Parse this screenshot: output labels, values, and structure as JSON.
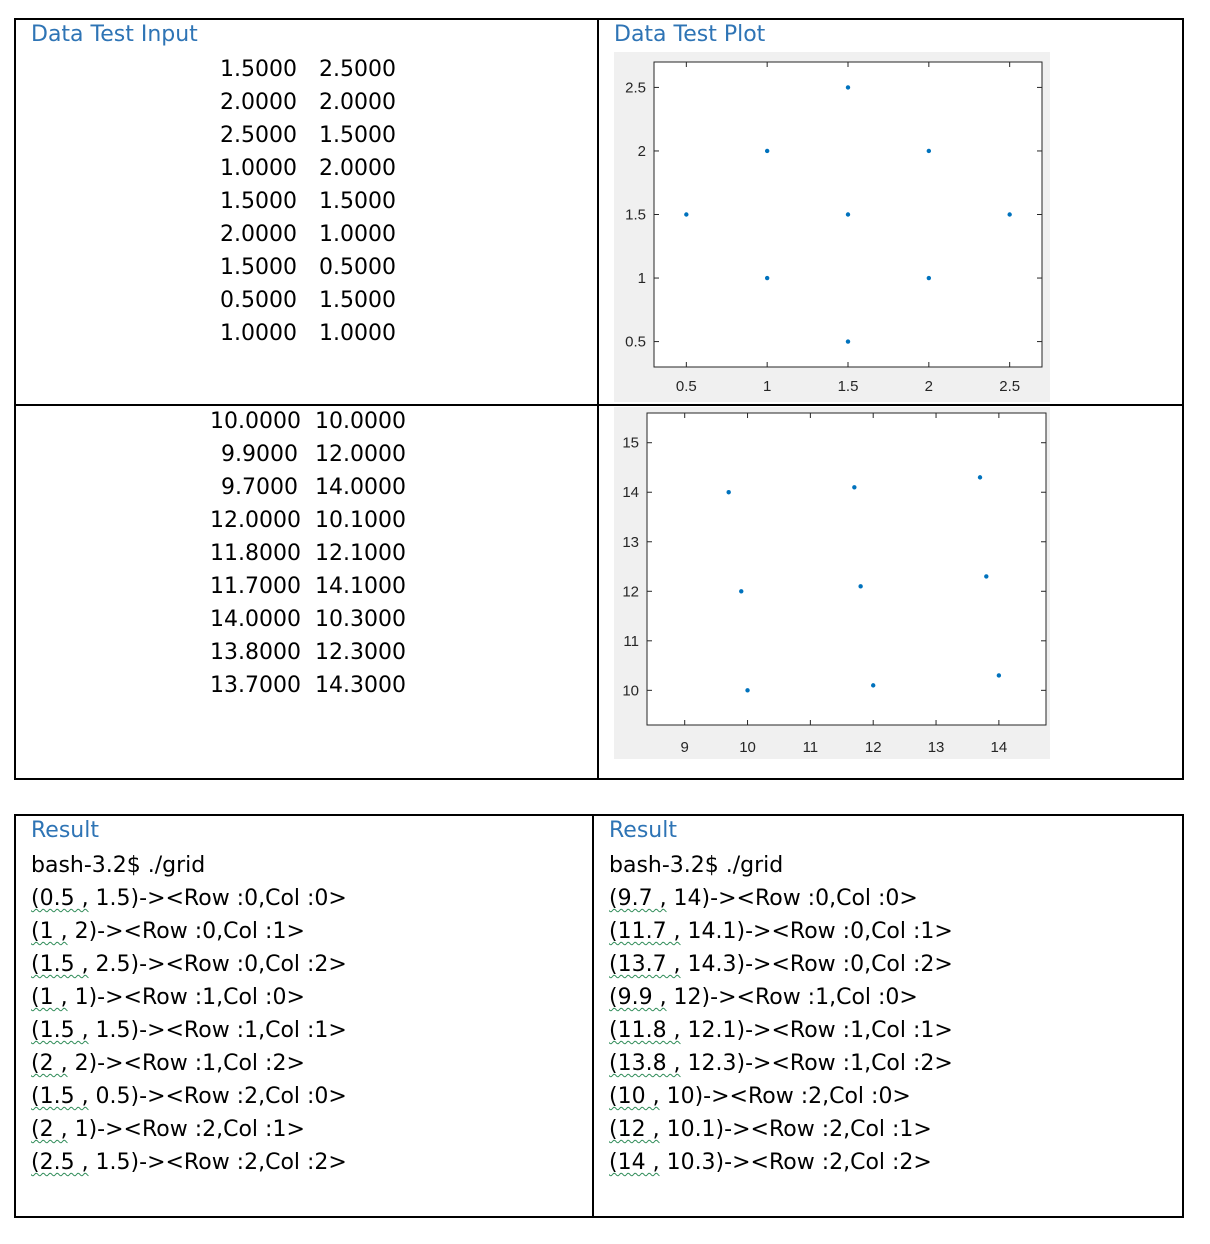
{
  "top": {
    "headings": {
      "input": "Data Test Input",
      "plot": "Data Test Plot"
    },
    "dataset1": [
      [
        "1.5000",
        "2.5000"
      ],
      [
        "2.0000",
        "2.0000"
      ],
      [
        "2.5000",
        "1.5000"
      ],
      [
        "1.0000",
        "2.0000"
      ],
      [
        "1.5000",
        "1.5000"
      ],
      [
        "2.0000",
        "1.0000"
      ],
      [
        "1.5000",
        "0.5000"
      ],
      [
        "0.5000",
        "1.5000"
      ],
      [
        "1.0000",
        "1.0000"
      ]
    ],
    "dataset2": [
      [
        "10.0000",
        "10.0000"
      ],
      [
        "9.9000",
        "12.0000"
      ],
      [
        "9.7000",
        "14.0000"
      ],
      [
        "12.0000",
        "10.1000"
      ],
      [
        "11.8000",
        "12.1000"
      ],
      [
        "11.7000",
        "14.1000"
      ],
      [
        "14.0000",
        "10.3000"
      ],
      [
        "13.8000",
        "12.3000"
      ],
      [
        "13.7000",
        "14.3000"
      ]
    ]
  },
  "chart_data": [
    {
      "type": "scatter",
      "x": [
        1.5,
        2.0,
        2.5,
        1.0,
        1.5,
        2.0,
        1.5,
        0.5,
        1.0
      ],
      "y": [
        2.5,
        2.0,
        1.5,
        2.0,
        1.5,
        1.0,
        0.5,
        1.5,
        1.0
      ],
      "xlim": [
        0.3,
        2.7
      ],
      "ylim": [
        0.3,
        2.7
      ],
      "xticks": [
        "0.5",
        "1",
        "1.5",
        "2",
        "2.5"
      ],
      "yticks": [
        "0.5",
        "1",
        "1.5",
        "2",
        "2.5"
      ],
      "marker_color": "#0072bd",
      "grid": false
    },
    {
      "type": "scatter",
      "x": [
        10.0,
        9.9,
        9.7,
        12.0,
        11.8,
        11.7,
        14.0,
        13.8,
        13.7
      ],
      "y": [
        10.0,
        12.0,
        14.0,
        10.1,
        12.1,
        14.1,
        10.3,
        12.3,
        14.3
      ],
      "xlim": [
        8.4,
        14.75
      ],
      "ylim": [
        9.3,
        15.6
      ],
      "xticks": [
        "9",
        "10",
        "11",
        "12",
        "13",
        "14"
      ],
      "yticks": [
        "10",
        "11",
        "12",
        "13",
        "14",
        "15"
      ],
      "marker_color": "#0072bd",
      "grid": false
    }
  ],
  "results": {
    "left": {
      "title": "Result",
      "command": "bash-3.2$ ./grid",
      "lines": [
        "(0.5 , 1.5)-><Row :0,Col :0>",
        "(1 , 2)-><Row :0,Col :1>",
        "(1.5 , 2.5)-><Row :0,Col :2>",
        "(1 , 1)-><Row :1,Col :0>",
        "(1.5 , 1.5)-><Row :1,Col :1>",
        "(2 , 2)-><Row :1,Col :2>",
        "(1.5 , 0.5)-><Row :2,Col :0>",
        "(2 , 1)-><Row :2,Col :1>",
        "(2.5 , 1.5)-><Row :2,Col :2>"
      ]
    },
    "right": {
      "title": "Result",
      "command": "bash-3.2$ ./grid",
      "lines": [
        "(9.7 , 14)-><Row :0,Col :0>",
        "(11.7 , 14.1)-><Row :0,Col :1>",
        "(13.7 , 14.3)-><Row :0,Col :2>",
        "(9.9 , 12)-><Row :1,Col :0>",
        "(11.8 , 12.1)-><Row :1,Col :1>",
        "(13.8 , 12.3)-><Row :1,Col :2>",
        "(10 , 10)-><Row :2,Col :0>",
        "(12 , 10.1)-><Row :2,Col :1>",
        "(14 , 10.3)-><Row :2,Col :2>"
      ]
    }
  }
}
